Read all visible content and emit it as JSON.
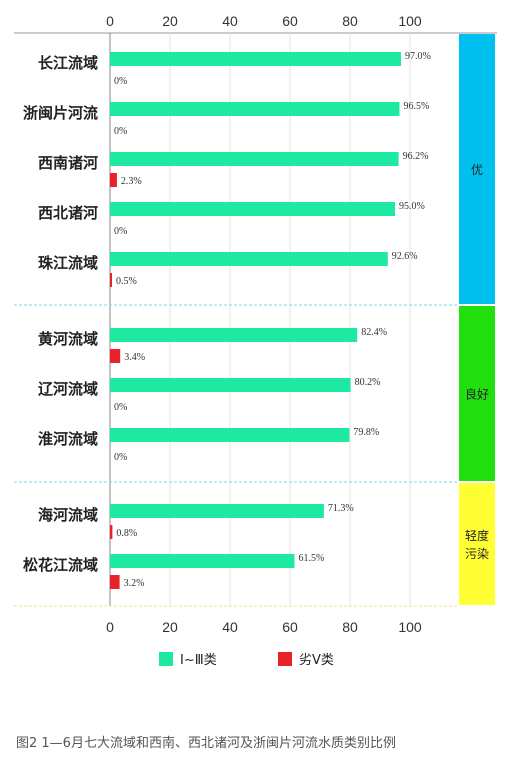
{
  "chart_data": {
    "type": "bar",
    "orientation": "horizontal",
    "categories": [
      "长江流域",
      "浙闽片河流",
      "西南诸河",
      "西北诸河",
      "珠江流域",
      "黄河流域",
      "辽河流域",
      "淮河流域",
      "海河流域",
      "松花江流域"
    ],
    "series": [
      {
        "name": "Ⅰ~Ⅲ类",
        "color": "#1de9a0",
        "values": [
          97.0,
          96.5,
          96.2,
          95.0,
          92.6,
          82.4,
          80.2,
          79.8,
          71.3,
          61.5
        ],
        "labels": [
          "97.0%",
          "96.5%",
          "96.2%",
          "95.0%",
          "92.6%",
          "82.4%",
          "80.2%",
          "79.8%",
          "71.3%",
          "61.5%"
        ]
      },
      {
        "name": "劣Ⅴ类",
        "color": "#e8222a",
        "values": [
          0,
          0,
          2.3,
          0,
          0.5,
          3.4,
          0,
          0,
          0.8,
          3.2
        ],
        "labels": [
          "0%",
          "0%",
          "2.3%",
          "0%",
          "0.5%",
          "3.4%",
          "0%",
          "0%",
          "0.8%",
          "3.2%"
        ]
      }
    ],
    "xticks": [
      "0",
      "20",
      "40",
      "60",
      "80",
      "100"
    ],
    "xlim": [
      0,
      100
    ],
    "bands": [
      {
        "label": "优",
        "color": "#00c0f0",
        "categories": 5
      },
      {
        "label": "良好",
        "color": "#22e010",
        "categories": 3
      },
      {
        "label": "轻度污染",
        "label_lines": [
          "轻度",
          "污染"
        ],
        "color": "#ffff33",
        "categories": 2
      }
    ],
    "legend_position": "bottom",
    "caption": "图2  1—6月七大流域和西南、西北诸河及浙闽片河流水质类别比例"
  }
}
